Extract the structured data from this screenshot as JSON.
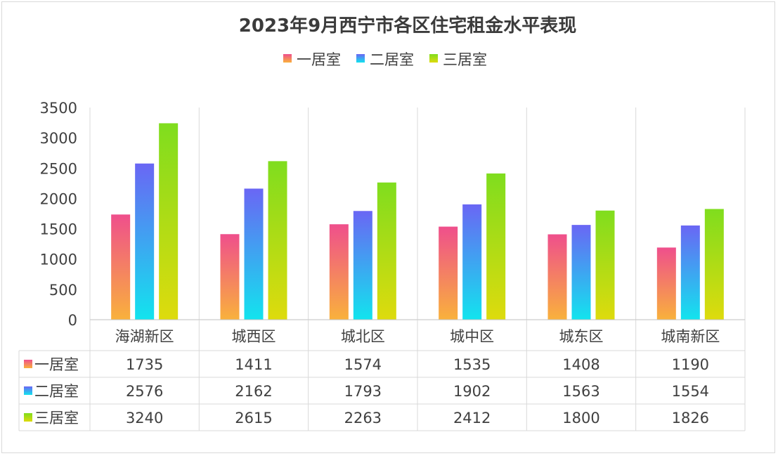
{
  "chart_data": {
    "type": "bar",
    "title": "2023年9月西宁市各区住宅租金水平表现",
    "categories": [
      "海湖新区",
      "城西区",
      "城北区",
      "城中区",
      "城东区",
      "城南新区"
    ],
    "series": [
      {
        "name": "一居室",
        "values": [
          1735,
          1411,
          1574,
          1535,
          1408,
          1190
        ],
        "gradient": [
          "#ef4f8c",
          "#f9b13c"
        ]
      },
      {
        "name": "二居室",
        "values": [
          2576,
          2162,
          1793,
          1902,
          1563,
          1554
        ],
        "gradient": [
          "#6a66f4",
          "#12e4ee"
        ]
      },
      {
        "name": "三居室",
        "values": [
          3240,
          2615,
          2263,
          2412,
          1800,
          1826
        ],
        "gradient": [
          "#7fdd1e",
          "#dedb0d"
        ]
      }
    ],
    "ylim": [
      0,
      3500
    ],
    "yticks": [
      0,
      500,
      1000,
      1500,
      2000,
      2500,
      3000,
      3500
    ],
    "xlabel": "",
    "ylabel": "",
    "grid": "vertical category dividers",
    "legend": "top-center",
    "data_table": true
  }
}
